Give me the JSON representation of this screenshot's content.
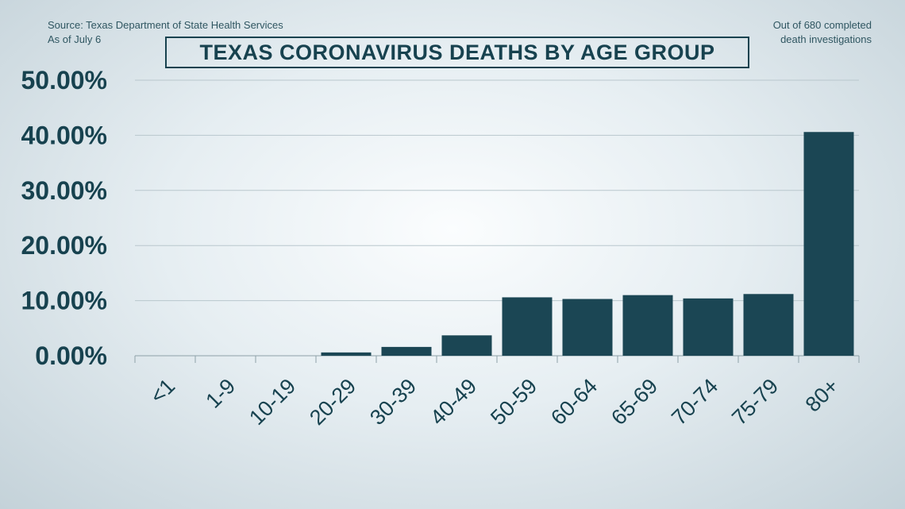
{
  "source": {
    "line1": "Source: Texas Department of State Health Services",
    "line2": "As of July 6"
  },
  "note": {
    "line1": "Out of 680 completed",
    "line2": "death investigations"
  },
  "colors": {
    "bar": "#1b4654",
    "text": "#17424f",
    "grid": "#b9c7cd"
  },
  "chart_data": {
    "type": "bar",
    "title": "TEXAS CORONAVIRUS DEATHS BY AGE GROUP",
    "xlabel": "",
    "ylabel": "",
    "categories": [
      "<1",
      "1-9",
      "10-19",
      "20-29",
      "30-39",
      "40-49",
      "50-59",
      "60-64",
      "65-69",
      "70-74",
      "75-79",
      "80+"
    ],
    "values": [
      0,
      0,
      0,
      0.6,
      1.6,
      3.7,
      10.6,
      10.3,
      11.0,
      10.4,
      11.2,
      40.6
    ],
    "ylim": [
      0,
      50
    ],
    "yticks": [
      0,
      10,
      20,
      30,
      40,
      50
    ],
    "ytick_labels": [
      "0.00%",
      "10.00%",
      "20.00%",
      "30.00%",
      "40.00%",
      "50.00%"
    ],
    "grid": true,
    "legend": "none"
  }
}
